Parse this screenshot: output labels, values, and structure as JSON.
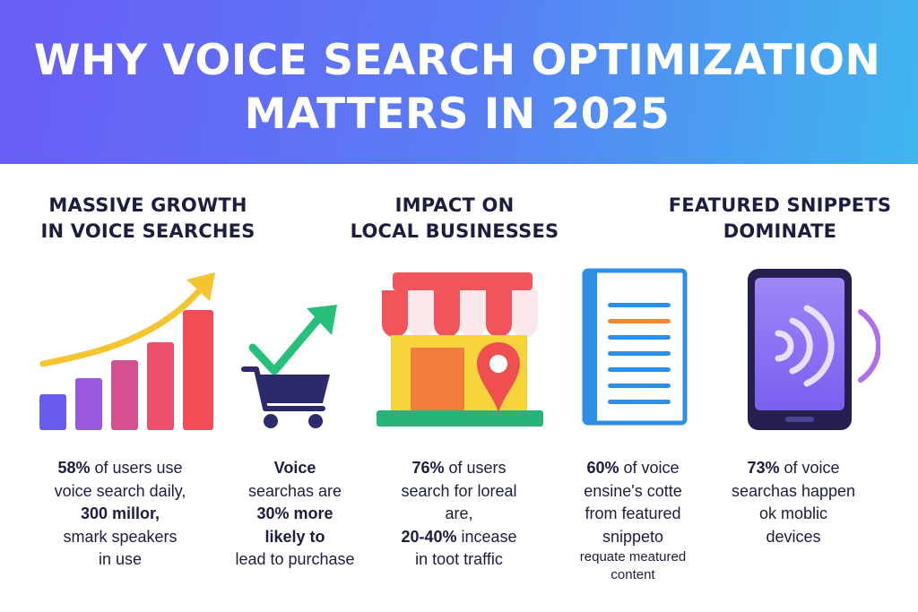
{
  "header": {
    "title_line1": "WHY VOICE SEARCH OPTIMIZATION",
    "title_line2": "MATTERS IN 2025"
  },
  "sections": [
    {
      "heading_line1": "MASSIVE GROWTH",
      "heading_line2": "IN VOICE SEARCHES"
    },
    {
      "heading_line1": "IMPACT ON",
      "heading_line2": "LOCAL BUSINESSES"
    },
    {
      "heading_line1": "FEATURED SNIPPETS",
      "heading_line2": "DOMINATE"
    }
  ],
  "stats": [
    {
      "bold1": "58%",
      "text1": " of users use",
      "text2": "voice search daily,",
      "bold3": "300 millor,",
      "text4": "smark speakers",
      "text5": "in use"
    },
    {
      "bold1": "Voice",
      "text2": "searchas are",
      "bold3": "30% more",
      "bold4": "likely to",
      "text5": "lead to purchase"
    },
    {
      "bold1": "76%",
      "text1": " of users",
      "text2": "search for loreal",
      "text3": "are,",
      "bold4": "20-40%",
      "text4": " incease",
      "text5": "in toot traffic"
    },
    {
      "bold1": "60%",
      "text1": " of voice",
      "text2": "ensine's cotte",
      "text3": "from featured",
      "text4": "snippeto",
      "small5": "requate meatured",
      "small6": "content"
    },
    {
      "bold1": "73%",
      "text1": " of voice",
      "text2": "searchas happen",
      "text3": "ok moblic",
      "text4": "devices"
    }
  ],
  "icons": [
    "growth-bar-chart-icon",
    "shopping-cart-check-icon",
    "storefront-icon",
    "location-pin-icon",
    "document-icon",
    "smartphone-voice-icon"
  ],
  "colors": {
    "banner_start": "#6a5cf6",
    "banner_end": "#3fb6ee",
    "text_dark": "#1c1d3f",
    "arrow_yellow": "#f5c431",
    "check_green": "#27c07a",
    "pin_red": "#ef4f4f",
    "awning_red": "#f2545b",
    "phone_purple": "#8b6cf3"
  }
}
